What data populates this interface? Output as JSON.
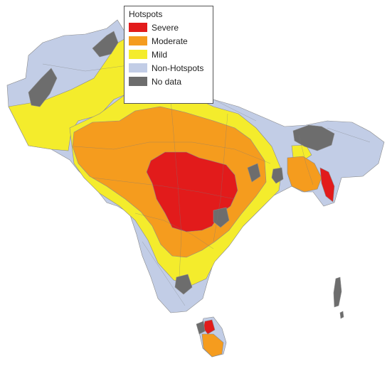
{
  "legend": {
    "title": "Hotspots",
    "items": [
      {
        "label": "Severe",
        "color": "#e21b1b"
      },
      {
        "label": "Moderate",
        "color": "#f59c1e"
      },
      {
        "label": "Mild",
        "color": "#f4ec2c"
      },
      {
        "label": "Non-Hotspots",
        "color": "#c2cde6"
      },
      {
        "label": "No data",
        "color": "#6d6d6d"
      }
    ]
  },
  "categories": {
    "severe": "#e21b1b",
    "moderate": "#f59c1e",
    "mild": "#f4ec2c",
    "non_hotspot": "#c2cde6",
    "no_data": "#6d6d6d"
  }
}
